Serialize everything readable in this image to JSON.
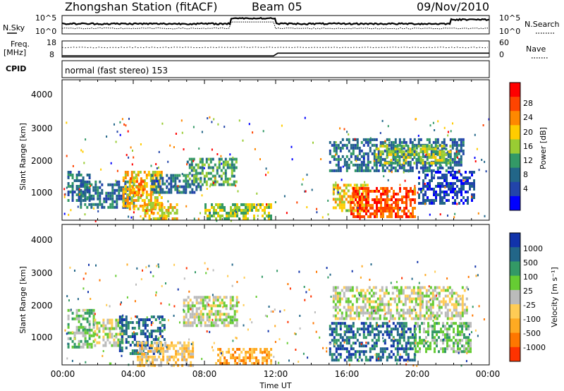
{
  "header": {
    "station": "Zhongshan Station (fitACF)",
    "beam": "Beam 05",
    "date": "09/Nov/2010"
  },
  "top_panel": {
    "left_label": "N.Sky",
    "right_label": "N.Search",
    "left_ticks": [
      "10^5",
      "10^0"
    ],
    "right_ticks": [
      "10^5",
      "10^0"
    ]
  },
  "freq_panel": {
    "left_label_1": "Freq.",
    "left_label_2": "[MHz]",
    "right_label": "Nave",
    "left_ticks": [
      "18",
      "8"
    ],
    "right_ticks": [
      "60",
      "0"
    ]
  },
  "cpid": {
    "label": "CPID",
    "text": "normal (fast stereo) 153"
  },
  "power_colorbar": {
    "label": "Power [dB]",
    "ticks": [
      "28",
      "24",
      "20",
      "16",
      "12",
      "8",
      "4"
    ],
    "colors": [
      "#ff0000",
      "#ff4400",
      "#ff8800",
      "#ffcc00",
      "#99cc33",
      "#339966",
      "#226688",
      "#2244aa",
      "#0000ff"
    ]
  },
  "velocity_colorbar": {
    "label": "Velocity [m s⁻¹]",
    "ticks": [
      "1000",
      "500",
      "100",
      "25",
      "-25",
      "-100",
      "-500",
      "-1000"
    ],
    "colors": [
      "#1133aa",
      "#226688",
      "#339966",
      "#66cc33",
      "#bbbbbb",
      "#ffcc55",
      "#ffaa22",
      "#ff7700",
      "#ff3300"
    ]
  },
  "chart_data": [
    {
      "type": "heatmap",
      "name": "Power",
      "ylabel": "Slant Range [km]",
      "yticks": [
        "4000",
        "3000",
        "2000",
        "1000"
      ],
      "ylim": [
        180,
        4500
      ],
      "xlim": [
        0,
        24
      ],
      "regions": [
        {
          "t0": 0.3,
          "t1": 1.6,
          "r0": 800,
          "r1": 1700,
          "level": 2
        },
        {
          "t0": 1.0,
          "t1": 4.0,
          "r0": 600,
          "r1": 1400,
          "level": 2
        },
        {
          "t0": 3.4,
          "t1": 5.6,
          "r0": 500,
          "r1": 1700,
          "level": 5
        },
        {
          "t0": 3.8,
          "t1": 4.6,
          "r0": 900,
          "r1": 1500,
          "level": 6
        },
        {
          "t0": 4.5,
          "t1": 6.5,
          "r0": 200,
          "r1": 700,
          "level": 5
        },
        {
          "t0": 5.0,
          "t1": 7.8,
          "r0": 1000,
          "r1": 1600,
          "level": 2
        },
        {
          "t0": 7.0,
          "t1": 9.8,
          "r0": 1300,
          "r1": 2100,
          "level": 3
        },
        {
          "t0": 8.0,
          "t1": 11.8,
          "r0": 200,
          "r1": 700,
          "level": 4
        },
        {
          "t0": 15.2,
          "t1": 17.2,
          "r0": 500,
          "r1": 1300,
          "level": 5
        },
        {
          "t0": 16.2,
          "t1": 19.8,
          "r0": 300,
          "r1": 1200,
          "level": 7
        },
        {
          "t0": 15.0,
          "t1": 22.5,
          "r0": 1700,
          "r1": 2700,
          "level": 2
        },
        {
          "t0": 17.6,
          "t1": 21.8,
          "r0": 1900,
          "r1": 2500,
          "level": 4
        },
        {
          "t0": 20.0,
          "t1": 23.2,
          "r0": 700,
          "r1": 1700,
          "level": 1
        }
      ]
    },
    {
      "type": "heatmap",
      "name": "Velocity",
      "ylabel": "Slant Range [km]",
      "yticks": [
        "4000",
        "3000",
        "2000",
        "1000"
      ],
      "ylim": [
        180,
        4500
      ],
      "xlim": [
        0,
        24
      ],
      "regions": [
        {
          "t0": 0.3,
          "t1": 1.8,
          "r0": 700,
          "r1": 1900,
          "level": 5
        },
        {
          "t0": 1.8,
          "t1": 3.4,
          "r0": 800,
          "r1": 1600,
          "level": 4
        },
        {
          "t0": 3.2,
          "t1": 5.8,
          "r0": 500,
          "r1": 1700,
          "level": 7
        },
        {
          "t0": 4.2,
          "t1": 7.4,
          "r0": 200,
          "r1": 900,
          "level": 3
        },
        {
          "t0": 6.8,
          "t1": 9.8,
          "r0": 1400,
          "r1": 2300,
          "level": 4
        },
        {
          "t0": 8.6,
          "t1": 11.8,
          "r0": 200,
          "r1": 700,
          "level": 2
        },
        {
          "t0": 15.0,
          "t1": 19.8,
          "r0": 300,
          "r1": 1500,
          "level": 7
        },
        {
          "t0": 15.2,
          "t1": 22.8,
          "r0": 1600,
          "r1": 2600,
          "level": 4
        },
        {
          "t0": 19.8,
          "t1": 23.0,
          "r0": 600,
          "r1": 1500,
          "level": 5
        }
      ]
    }
  ],
  "x_axis": {
    "label": "Time UT",
    "ticks": [
      "00:00",
      "04:00",
      "08:00",
      "12:00",
      "16:00",
      "20:00",
      "00:00"
    ]
  }
}
